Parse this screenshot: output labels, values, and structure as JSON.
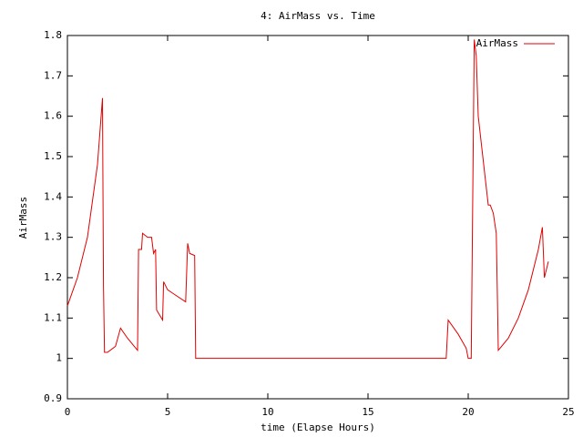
{
  "chart_data": {
    "type": "line",
    "title": "4: AirMass vs. Time",
    "x_label": "time (Elapse Hours)",
    "y_label": "AirMass",
    "xlim": [
      0,
      25
    ],
    "xticks": [
      0,
      5,
      10,
      15,
      20,
      25
    ],
    "ylim": [
      0.9,
      1.8
    ],
    "yticks": [
      0.9,
      1,
      1.1,
      1.2,
      1.3,
      1.4,
      1.5,
      1.6,
      1.7,
      1.8
    ],
    "legend": "top-right",
    "series": [
      {
        "name": "AirMass",
        "color": "#e00000",
        "x": [
          0,
          0.5,
          1,
          1.5,
          1.75,
          1.8,
          1.85,
          2,
          2.4,
          2.65,
          3,
          3.5,
          3.55,
          3.7,
          3.75,
          4,
          4.2,
          4.3,
          4.4,
          4.45,
          4.75,
          4.8,
          5,
          5.3,
          5.9,
          6,
          6.1,
          6.35,
          6.4,
          10,
          15,
          18.9,
          19,
          19.5,
          19.9,
          20,
          20.15,
          20.3,
          20.4,
          20.5,
          21,
          21.1,
          21.25,
          21.4,
          21.45,
          21.5,
          22,
          22.5,
          23,
          23.5,
          23.7,
          23.8,
          24
        ],
        "values": [
          1.13,
          1.2,
          1.3,
          1.48,
          1.645,
          1.18,
          1.015,
          1.015,
          1.03,
          1.075,
          1.05,
          1.02,
          1.27,
          1.27,
          1.31,
          1.3,
          1.3,
          1.26,
          1.27,
          1.12,
          1.095,
          1.19,
          1.17,
          1.16,
          1.14,
          1.285,
          1.26,
          1.255,
          1.0,
          1.0,
          1.0,
          1.0,
          1.095,
          1.06,
          1.025,
          1.0,
          1.0,
          1.79,
          1.75,
          1.6,
          1.38,
          1.38,
          1.36,
          1.31,
          1.17,
          1.02,
          1.05,
          1.1,
          1.17,
          1.27,
          1.325,
          1.2,
          1.24
        ]
      }
    ]
  }
}
